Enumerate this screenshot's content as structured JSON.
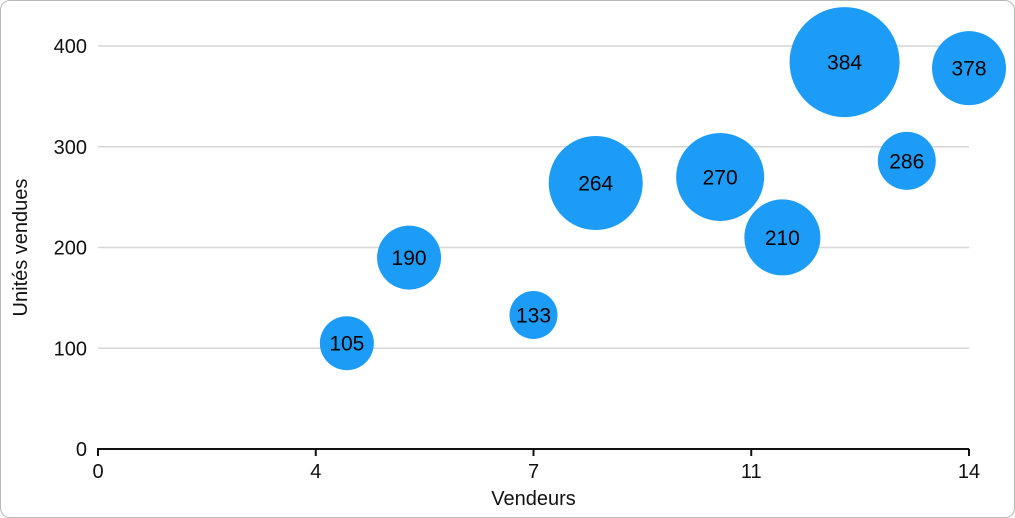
{
  "figure": {
    "background": "#ffffff",
    "border_color": "#b9b9b9"
  },
  "chart_data": {
    "type": "bubble",
    "title": "",
    "xlabel": "Vendeurs",
    "ylabel": "Unités vendues",
    "xlim": [
      0,
      14
    ],
    "ylim": [
      0,
      400
    ],
    "grid": true,
    "legend": false,
    "colors": {
      "bubble": "#1c9cf6",
      "bubble_label": "#000000",
      "grid": "#d6d6d6",
      "axis": "#111111",
      "text": "#111111"
    },
    "x_ticks": [
      {
        "value": 0,
        "label": "0"
      },
      {
        "value": 3.5,
        "label": "4"
      },
      {
        "value": 7,
        "label": "7"
      },
      {
        "value": 10.5,
        "label": "11"
      },
      {
        "value": 14,
        "label": "14"
      }
    ],
    "y_ticks": [
      {
        "value": 0,
        "label": "0"
      },
      {
        "value": 100,
        "label": "100"
      },
      {
        "value": 200,
        "label": "200"
      },
      {
        "value": 300,
        "label": "300"
      },
      {
        "value": 400,
        "label": "400"
      }
    ],
    "points": [
      {
        "x": 4,
        "y": 105,
        "r": 27,
        "label": "105"
      },
      {
        "x": 5,
        "y": 190,
        "r": 32,
        "label": "190"
      },
      {
        "x": 7,
        "y": 133,
        "r": 24,
        "label": "133"
      },
      {
        "x": 8,
        "y": 264,
        "r": 47,
        "label": "264"
      },
      {
        "x": 10,
        "y": 270,
        "r": 44,
        "label": "270"
      },
      {
        "x": 11,
        "y": 210,
        "r": 38,
        "label": "210"
      },
      {
        "x": 12,
        "y": 384,
        "r": 55,
        "label": "384"
      },
      {
        "x": 13,
        "y": 286,
        "r": 29,
        "label": "286"
      },
      {
        "x": 14,
        "y": 378,
        "r": 37,
        "label": "378"
      }
    ]
  }
}
